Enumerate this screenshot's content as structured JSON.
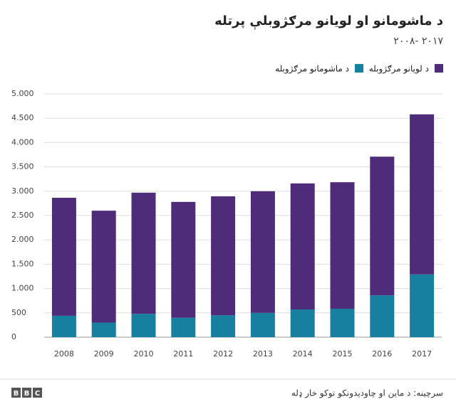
{
  "chart_data": {
    "type": "stacked_bar",
    "title": "د ماشومانو او لویانو مرګژوبلې پرتله",
    "subtitle": "۲۰۰۸- ۲۰۱۷",
    "categories": [
      "2008",
      "2009",
      "2010",
      "2011",
      "2012",
      "2013",
      "2014",
      "2015",
      "2016",
      "2017"
    ],
    "series": [
      {
        "name": "د ماشومانو مرګژوبله",
        "color": "#1780a1",
        "values": [
          440,
          300,
          480,
          400,
          450,
          500,
          570,
          585,
          860,
          1290
        ]
      },
      {
        "name": "د لویانو مرګژوبله",
        "color": "#4e2c79",
        "values": [
          2425,
          2300,
          2490,
          2380,
          2445,
          2500,
          2590,
          2600,
          2850,
          3290
        ]
      }
    ],
    "ylim": [
      0,
      5000
    ],
    "yticks": [
      0,
      500,
      {
        "value": 1000,
        "label": "1.000"
      },
      {
        "value": 1500,
        "label": "1.500"
      },
      {
        "value": 2000,
        "label": "2.000"
      },
      {
        "value": 2500,
        "label": "2.500"
      },
      {
        "value": 3000,
        "label": "3.000"
      },
      {
        "value": 3500,
        "label": "3.500"
      },
      {
        "value": 4000,
        "label": "4.000"
      },
      {
        "value": 4500,
        "label": "4.500"
      },
      {
        "value": 5000,
        "label": "5.000"
      }
    ],
    "grid": true,
    "source": "سرچینه: د ماین او چاودېدونکو توکو خار ډله",
    "logo": [
      "B",
      "B",
      "C"
    ]
  }
}
